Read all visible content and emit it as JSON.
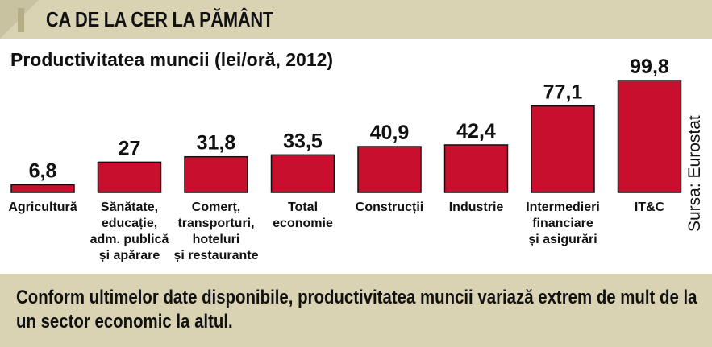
{
  "header": {
    "title": "CA DE LA CER LA PĂMÂNT"
  },
  "chart_data": {
    "type": "bar",
    "title": "Productivitatea muncii (lei/oră, 2012)",
    "categories": [
      [
        "Agricultură"
      ],
      [
        "Sănătate,",
        "educație,",
        "adm. publică",
        "și apărare"
      ],
      [
        "Comerț,",
        "transporturi,",
        "hoteluri",
        "și restaurante"
      ],
      [
        "Total",
        "economie"
      ],
      [
        "Construcții"
      ],
      [
        "Industrie"
      ],
      [
        "Intermedieri",
        "financiare",
        "și asigurări"
      ],
      [
        "IT&C"
      ]
    ],
    "values": [
      6.8,
      27,
      31.8,
      33.5,
      40.9,
      42.4,
      77.1,
      99.8
    ],
    "value_labels": [
      "6,8",
      "27",
      "31,8",
      "33,5",
      "40,9",
      "42,4",
      "77,1",
      "99,8"
    ],
    "source": "Sursa: Eurostat",
    "bar_color": "#c8102e",
    "grid": false,
    "legend": false
  },
  "footer": {
    "text": "Conform ultimelor date disponibile, productivitatea muncii variază extrem de mult de la un sector economic la altul."
  },
  "colors": {
    "panel": "#d9d3b4",
    "bar": "#c8102e",
    "text": "#111111"
  }
}
